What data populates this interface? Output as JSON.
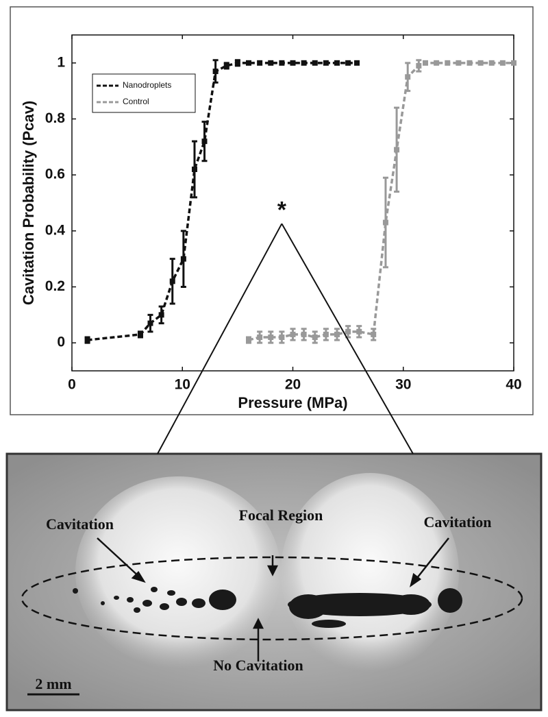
{
  "chart_data": {
    "type": "line",
    "xlabel": "Pressure (MPa)",
    "ylabel": "Cavitation Probability (Pcav)",
    "xlim": [
      0,
      40
    ],
    "ylim": [
      -0.1,
      1.1
    ],
    "xticks": [
      0,
      10,
      20,
      30,
      40
    ],
    "yticks": [
      0,
      0.2,
      0.4,
      0.6,
      0.8,
      1
    ],
    "legend": "upper left",
    "annotation": "*",
    "annotation_x": 19,
    "annotation_y": 0.46,
    "series": [
      {
        "name": "Nanodroplets",
        "color": "#111111",
        "x": [
          1.4,
          6.2,
          7.1,
          8.1,
          9.1,
          10.1,
          11.1,
          12.0,
          13.0,
          14,
          15,
          16,
          17,
          18,
          19,
          20,
          21,
          22,
          23,
          24,
          25,
          25.8
        ],
        "values": [
          0.01,
          0.03,
          0.07,
          0.1,
          0.22,
          0.3,
          0.62,
          0.72,
          0.97,
          0.99,
          1,
          1,
          1,
          1,
          1,
          1,
          1,
          1,
          1,
          1,
          1,
          1
        ],
        "errors": [
          0.01,
          0.01,
          0.03,
          0.03,
          0.08,
          0.1,
          0.1,
          0.07,
          0.04,
          0.01,
          0.01,
          0,
          0,
          0,
          0,
          0,
          0,
          0,
          0,
          0,
          0,
          0
        ]
      },
      {
        "name": "Control",
        "color": "#999999",
        "x": [
          16,
          17,
          18,
          19,
          20,
          21,
          22,
          23,
          24,
          25,
          26,
          27.3,
          28.4,
          29.4,
          30.4,
          31.4,
          32,
          33,
          34,
          35,
          36,
          37,
          38,
          39,
          40
        ],
        "values": [
          0.01,
          0.02,
          0.02,
          0.02,
          0.03,
          0.03,
          0.02,
          0.03,
          0.03,
          0.04,
          0.04,
          0.03,
          0.43,
          0.69,
          0.95,
          0.99,
          1,
          1,
          1,
          1,
          1,
          1,
          1,
          1,
          1
        ],
        "errors": [
          0.01,
          0.02,
          0.02,
          0.02,
          0.02,
          0.02,
          0.02,
          0.02,
          0.02,
          0.02,
          0.02,
          0.02,
          0.16,
          0.15,
          0.05,
          0.02,
          0,
          0,
          0,
          0,
          0,
          0,
          0,
          0,
          0
        ]
      }
    ]
  },
  "image": {
    "labels": [
      "Cavitation",
      "Focal Region",
      "Cavitation",
      "No Cavitation"
    ],
    "scale_bar": "2 mm"
  }
}
